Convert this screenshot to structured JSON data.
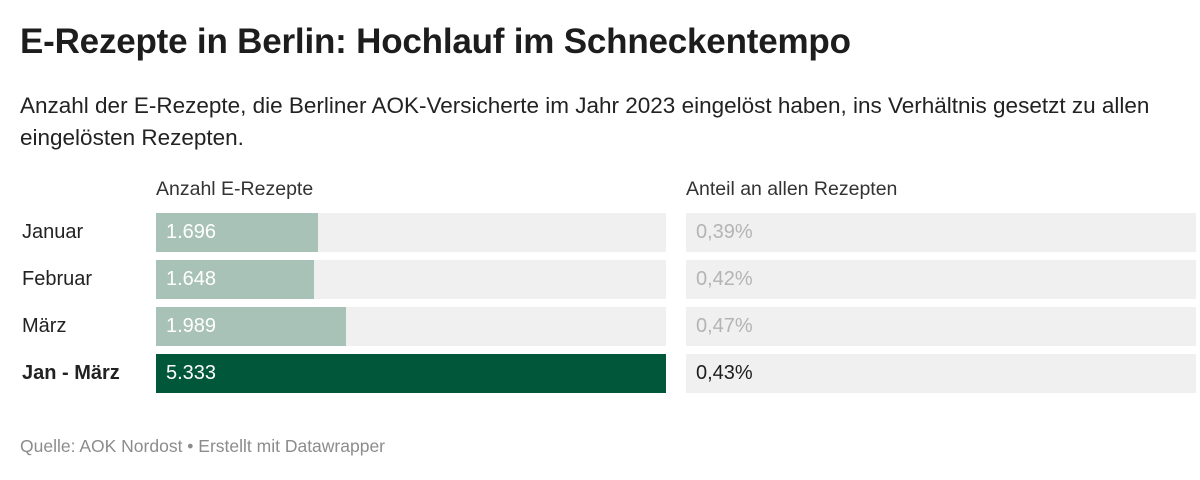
{
  "title": "E-Rezepte in Berlin: Hochlauf im Schneckentempo",
  "subtitle": "Anzahl der E-Rezepte, die Berliner AOK-Versicherte im Jahr 2023 eingelöst haben, ins Verhältnis gesetzt zu allen eingelösten Rezepten.",
  "columns": {
    "count_header": "Anzahl E-Rezepte",
    "share_header": "Anteil an allen Rezepten"
  },
  "colors": {
    "bar_light": "#a9c2b7",
    "bar_dark": "#00573a",
    "track": "#f0f0f0",
    "value_text_on_dark": "#ffffff",
    "value_text_on_light": "#ffffff"
  },
  "chart_data": {
    "type": "bar",
    "orientation": "horizontal",
    "categories": [
      "Januar",
      "Februar",
      "März",
      "Jan - März"
    ],
    "series": [
      {
        "name": "Anzahl E-Rezepte",
        "values": [
          1696,
          1648,
          1989,
          5333
        ]
      }
    ],
    "value_labels": [
      "1.696",
      "1.648",
      "1.989",
      "5.333"
    ],
    "share": [
      0.39,
      0.42,
      0.47,
      0.43
    ],
    "share_labels": [
      "0,39%",
      "0,42%",
      "0,47%",
      "0,43%"
    ],
    "highlight": [
      false,
      false,
      false,
      true
    ],
    "xlim": [
      0,
      5333
    ],
    "grid": false,
    "legend": "none"
  },
  "footer": "Quelle: AOK Nordost • Erstellt mit Datawrapper"
}
